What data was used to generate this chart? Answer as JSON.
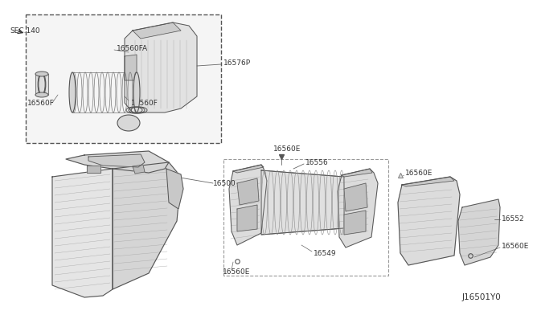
{
  "background_color": "#ffffff",
  "labels": {
    "sec140": "SEC.140",
    "l16560FA": "16560FA",
    "l16576P": "16576P",
    "l16560F_right": "16560F",
    "l16560F_left": "16560F",
    "l16500": "16500",
    "l16560E_top": "16560E",
    "l16556": "16556",
    "l16560E_topright": "16560E",
    "l16549": "16549",
    "l16552": "16552",
    "l16560E_botright": "16560E",
    "l16560E_botleft": "16560E",
    "footer": "J16501Y0"
  },
  "font_size": 7,
  "line_color": "#666666",
  "text_color": "#333333",
  "part_fill": "#e8e8e8",
  "part_edge": "#555555",
  "dark_fill": "#c8c8c8"
}
